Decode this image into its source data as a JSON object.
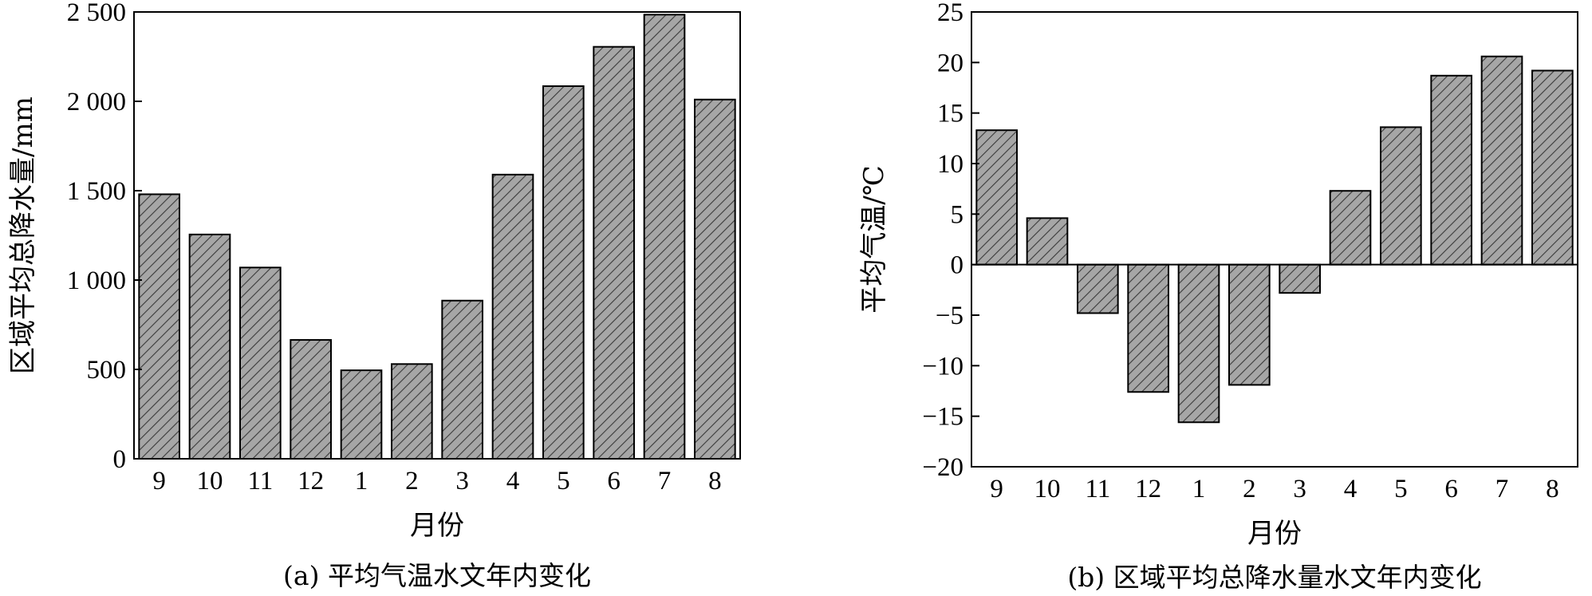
{
  "chart_data": [
    {
      "type": "bar",
      "title": "",
      "caption": "(a) 平均气温水文年内变化",
      "xlabel": "月份",
      "ylabel": "区域平均总降水量/mm",
      "categories": [
        "9",
        "10",
        "11",
        "12",
        "1",
        "2",
        "3",
        "4",
        "5",
        "6",
        "7",
        "8"
      ],
      "values": [
        1480,
        1255,
        1070,
        665,
        495,
        530,
        885,
        1590,
        2085,
        2305,
        2485,
        2010
      ],
      "ylim": [
        0,
        2500
      ],
      "yticks": [
        0,
        500,
        1000,
        1500,
        2000,
        2500
      ],
      "ytick_labels": [
        "0",
        "500",
        "1 000",
        "1 500",
        "2 000",
        "2 500"
      ],
      "grid": false,
      "bar_color": "#a6a6a6",
      "hatch_color": "#3a3a3a"
    },
    {
      "type": "bar",
      "title": "",
      "caption": "(b) 区域平均总降水量水文年内变化",
      "xlabel": "月份",
      "ylabel": "平均气温/℃",
      "categories": [
        "9",
        "10",
        "11",
        "12",
        "1",
        "2",
        "3",
        "4",
        "5",
        "6",
        "7",
        "8"
      ],
      "values": [
        13.3,
        4.6,
        -4.8,
        -12.6,
        -15.6,
        -11.9,
        -2.8,
        7.3,
        13.6,
        18.7,
        20.6,
        19.2
      ],
      "ylim": [
        -20,
        25
      ],
      "yticks": [
        -20,
        -15,
        -10,
        -5,
        0,
        5,
        10,
        15,
        20,
        25
      ],
      "ytick_labels": [
        "−20",
        "−15",
        "−10",
        "−5",
        "0",
        "5",
        "10",
        "15",
        "20",
        "25"
      ],
      "grid": false,
      "bar_color": "#a6a6a6",
      "hatch_color": "#3a3a3a"
    }
  ]
}
